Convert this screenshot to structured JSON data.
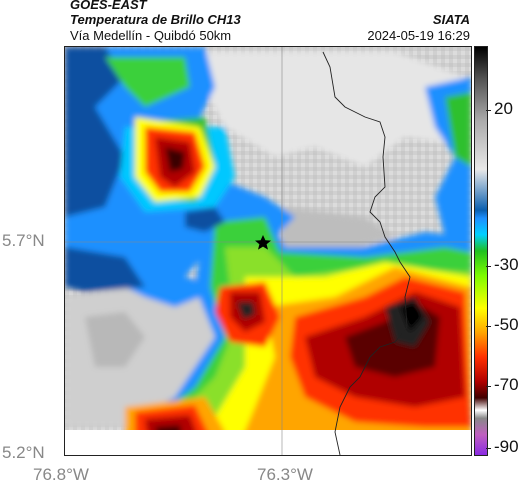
{
  "header": {
    "title_line1": "GOES-EAST",
    "title_line2": "Temperatura de Brillo CH13",
    "subtitle": "Vía Medellín - Quibdó 50km",
    "organization": "SIATA",
    "timestamp": "2024-05-19 16:29"
  },
  "axes": {
    "lat_labels": [
      "5.7°N",
      "5.2°N"
    ],
    "lon_labels": [
      "76.8°W",
      "76.3°W"
    ]
  },
  "colorbar": {
    "labels": [
      "20",
      "-30",
      "-50",
      "-70",
      "-90"
    ],
    "unit": ""
  },
  "marker": {
    "symbol": "star"
  }
}
